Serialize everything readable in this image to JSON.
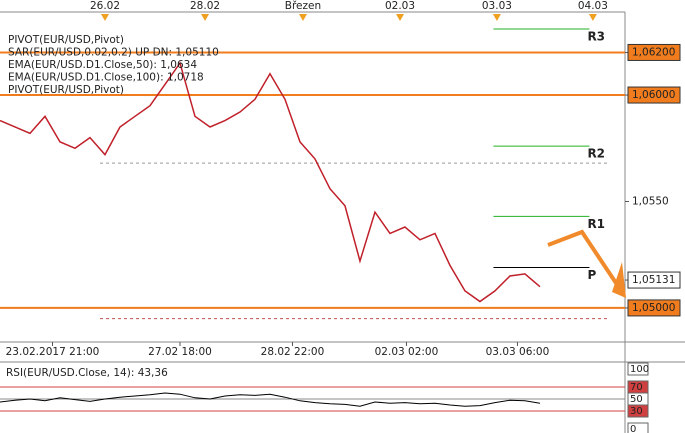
{
  "chart_data": {
    "type": "line",
    "indicators": [
      "PIVOT(EUR/USD,Pivot)",
      "SAR(EUR/USD,0.02,0.2)   UP DN: 1,05110",
      "EMA(EUR/USD.D1.Close,50): 1,0634",
      "EMA(EUR/USD.D1.Close,100): 1,0718",
      "PIVOT(EUR/USD,Pivot)"
    ],
    "indicator_colors": [
      "#222222",
      "#e07070",
      "#20a0a0",
      "#8b3030",
      "#222222"
    ],
    "x": [
      0,
      1,
      2,
      3,
      4,
      5,
      6,
      7,
      8,
      9,
      10,
      11,
      12,
      13,
      14,
      15,
      16,
      17,
      18,
      19,
      20,
      21,
      22,
      23,
      24,
      25,
      26,
      27,
      28,
      29,
      30,
      31,
      32,
      33,
      34,
      35,
      36
    ],
    "series": [
      {
        "color": "#c0202a",
        "values": [
          1.0588,
          1.0585,
          1.0582,
          1.059,
          1.0578,
          1.0575,
          1.058,
          1.0572,
          1.0585,
          1.059,
          1.0595,
          1.0605,
          1.0615,
          1.059,
          1.0585,
          1.0588,
          1.0592,
          1.0598,
          1.061,
          1.0598,
          1.0578,
          1.057,
          1.0556,
          1.0548,
          1.0522,
          1.0545,
          1.0535,
          1.0538,
          1.0532,
          1.0535,
          1.052,
          1.0508,
          1.0503,
          1.0508,
          1.0515,
          1.0516,
          1.051
        ]
      }
    ],
    "xlim": [
      0,
      41.67
    ],
    "ylim": [
      1.0484,
      1.0639
    ],
    "top_xticks": [
      {
        "value": 7,
        "label": "26.02"
      },
      {
        "value": 13.67,
        "label": "28.02"
      },
      {
        "value": 20.2,
        "label": "Březen"
      },
      {
        "value": 26.67,
        "label": "02.03"
      },
      {
        "value": 33.13,
        "label": "03.03"
      },
      {
        "value": 39.53,
        "label": "04.03"
      }
    ],
    "xticks": [
      {
        "value": 3.5,
        "label": "23.02.2017 21:00"
      },
      {
        "value": 12,
        "label": "27.02 18:00"
      },
      {
        "value": 19.5,
        "label": "28.02 22:00"
      },
      {
        "value": 27.1,
        "label": "02.03 02:00"
      },
      {
        "value": 34.5,
        "label": "03.03 06:00"
      }
    ],
    "yticks": [
      {
        "value": 1.062,
        "label": "1,06200"
      },
      {
        "value": 1.06,
        "label": "1,06000"
      },
      {
        "value": 1.055,
        "label": "1,0550"
      },
      {
        "value": 1.05131,
        "label": "1,05131"
      },
      {
        "value": 1.05,
        "label": "1,05000"
      }
    ],
    "hlines": [
      {
        "value": 1.062,
        "color": "#f07c1e"
      },
      {
        "value": 1.06,
        "color": "#f07c1e"
      },
      {
        "value": 1.05,
        "color": "#f07c1e"
      }
    ],
    "dashed_lines": [
      {
        "value": 1.0568,
        "color": "#999999"
      },
      {
        "value": 1.0495,
        "color": "#c05050"
      }
    ],
    "pivots": [
      {
        "label": "R3",
        "value": 1.0631,
        "color": "#22b022"
      },
      {
        "label": "R2",
        "value": 1.0576,
        "color": "#22b022"
      },
      {
        "label": "R1",
        "value": 1.0543,
        "color": "#22b022"
      },
      {
        "label": "P",
        "value": 1.0519,
        "color": "#000000"
      }
    ],
    "pivot_range": [
      32.9,
      39.3
    ],
    "rsi": {
      "title": "RSI(EUR/USD.Close, 14): 43,36",
      "color": "#000000",
      "values": [
        45,
        48,
        50,
        47,
        52,
        49,
        46,
        50,
        53,
        55,
        57,
        60,
        58,
        52,
        50,
        55,
        57,
        56,
        58,
        53,
        47,
        44,
        42,
        41,
        38,
        45,
        43,
        44,
        42,
        43,
        40,
        38,
        39,
        44,
        48,
        47,
        43
      ],
      "ylim": [
        0,
        100
      ],
      "yticks": [
        100,
        70,
        50,
        30,
        0
      ],
      "levels": [
        70,
        50,
        30
      ]
    }
  }
}
